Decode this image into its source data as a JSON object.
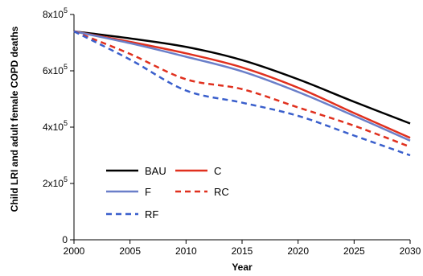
{
  "chart_data": {
    "type": "line",
    "xlabel": "Year",
    "ylabel": "Child LRI and adult female COPD deaths",
    "xlim": [
      2000,
      2030
    ],
    "ylim": [
      0,
      800000
    ],
    "x_ticks": [
      2000,
      2005,
      2010,
      2015,
      2020,
      2025,
      2030
    ],
    "x_tick_labels": [
      "2000",
      "2005",
      "2010",
      "2015",
      "2020",
      "2025",
      "2030"
    ],
    "y_ticks": [
      0,
      200000,
      400000,
      600000,
      800000
    ],
    "y_tick_labels": [
      {
        "base": "0",
        "exp": ""
      },
      {
        "base": "2x10",
        "exp": "5"
      },
      {
        "base": "4x10",
        "exp": "5"
      },
      {
        "base": "6x10",
        "exp": "5"
      },
      {
        "base": "8x10",
        "exp": "5"
      }
    ],
    "grid": false,
    "legend_position": "bottom-left",
    "x": [
      2000,
      2005,
      2010,
      2015,
      2020,
      2025,
      2030
    ],
    "series": [
      {
        "name": "BAU",
        "color": "#000000",
        "dash": "solid",
        "values": [
          740000,
          715000,
          685000,
          638000,
          570000,
          490000,
          413000
        ]
      },
      {
        "name": "C",
        "color": "#e0301e",
        "dash": "solid",
        "values": [
          740000,
          703000,
          662000,
          612000,
          540000,
          450000,
          362000
        ]
      },
      {
        "name": "F",
        "color": "#6a7fc9",
        "dash": "solid",
        "values": [
          740000,
          698000,
          650000,
          598000,
          525000,
          440000,
          352000
        ]
      },
      {
        "name": "RC",
        "color": "#e0301e",
        "dash": "dashed",
        "values": [
          740000,
          660000,
          570000,
          535000,
          470000,
          405000,
          330000
        ]
      },
      {
        "name": "RF",
        "color": "#3a5fcc",
        "dash": "dashed",
        "values": [
          740000,
          640000,
          530000,
          487000,
          440000,
          370000,
          300000
        ]
      }
    ]
  }
}
